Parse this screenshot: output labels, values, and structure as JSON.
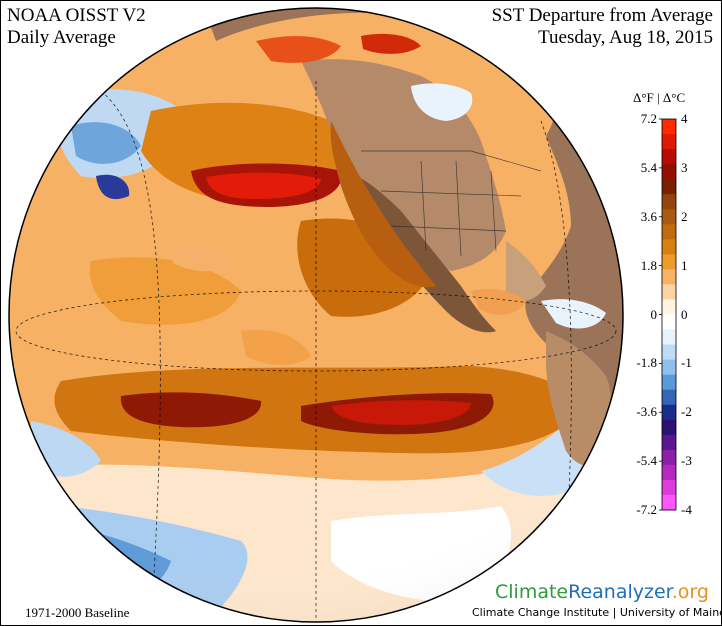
{
  "header": {
    "title_left": "NOAA OISST V2",
    "subtitle_left": "Daily Average",
    "title_right": "SST Departure from Average",
    "date": "Tuesday, Aug 18, 2015"
  },
  "legend": {
    "header": "Δ°F  |  Δ°C",
    "fahrenheit_ticks": [
      "7.2",
      "5.4",
      "3.6",
      "1.8",
      "0",
      "-1.8",
      "-3.6",
      "-5.4",
      "-7.2"
    ],
    "celsius_ticks": [
      "4",
      "3",
      "2",
      "1",
      "0",
      "-1",
      "-2",
      "-3",
      "-4"
    ],
    "range_c": [
      -4,
      4
    ],
    "colors_top_to_bottom": [
      "#ff2a00",
      "#e01a00",
      "#b80c00",
      "#931000",
      "#7a2000",
      "#93450f",
      "#a85a14",
      "#c06b10",
      "#d8800f",
      "#ee9a2c",
      "#f8b466",
      "#fdd3a6",
      "#fff3e2",
      "#ffffff",
      "#e8f2fc",
      "#bedbf5",
      "#8fc0ec",
      "#5b9ad8",
      "#3565b5",
      "#1a2c8c",
      "#2a1270",
      "#5a1590",
      "#8a1fa8",
      "#b52abe",
      "#dd3bdd",
      "#ff55ff"
    ]
  },
  "footer": {
    "baseline": "1971-2000 Baseline",
    "brand_part1": "Climate",
    "brand_part2": "Reanalyzer",
    "brand_part3": ".org",
    "credit": "Climate Change Institute | University of Maine"
  }
}
